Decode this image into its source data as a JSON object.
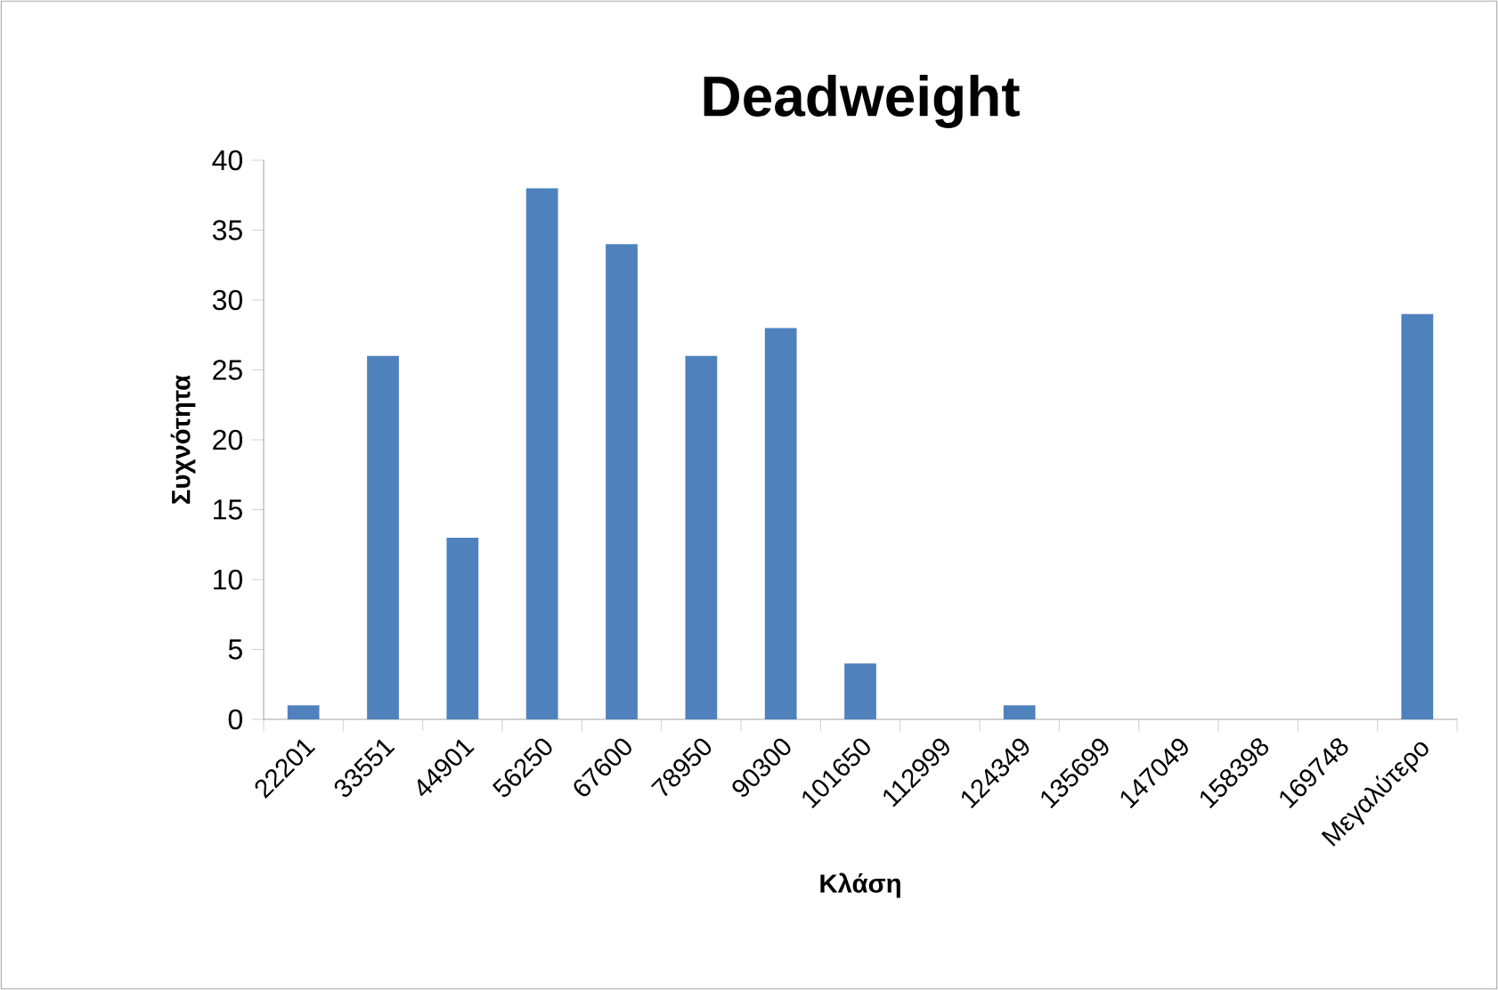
{
  "chart_data": {
    "type": "bar",
    "title": "Deadweight",
    "xlabel": "Κλάση",
    "ylabel": "Συχνότητα",
    "categories": [
      "22201",
      "33551",
      "44901",
      "56250",
      "67600",
      "78950",
      "90300",
      "101650",
      "112999",
      "124349",
      "135699",
      "147049",
      "158398",
      "169748",
      "Μεγαλύτερο"
    ],
    "values": [
      1,
      26,
      13,
      38,
      34,
      26,
      28,
      4,
      0,
      1,
      0,
      0,
      0,
      0,
      29
    ],
    "color": "#4f81bd",
    "ylim": [
      0,
      40
    ],
    "yticks": [
      0,
      5,
      10,
      15,
      20,
      25,
      30,
      35,
      40
    ]
  }
}
